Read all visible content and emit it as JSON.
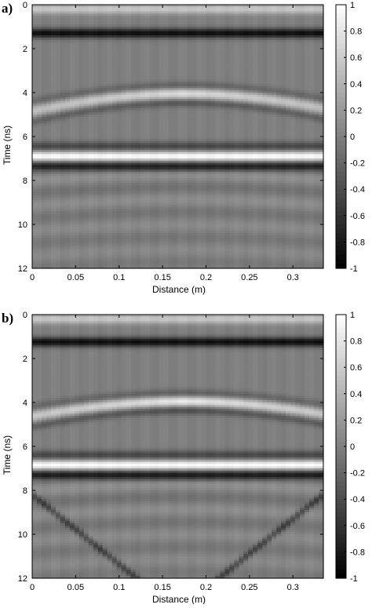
{
  "chart_data": [
    {
      "type": "heatmap",
      "panel_label": "a)",
      "xlabel": "Distance (m)",
      "ylabel": "Time (ns)",
      "xlim": [
        0,
        0.335
      ],
      "ylim": [
        12,
        0
      ],
      "xticks": [
        "0",
        "0.05",
        "0.1",
        "0.15",
        "0.2",
        "0.25",
        "0.3"
      ],
      "yticks": [
        "0",
        "2",
        "4",
        "6",
        "8",
        "10",
        "12"
      ],
      "colorbar": {
        "range": [
          -1,
          1
        ],
        "ticks": [
          "1",
          "0.8",
          "0.6",
          "0.4",
          "0.2",
          "0",
          "-0.2",
          "-0.4",
          "-0.6",
          "-0.8",
          "-1"
        ],
        "colormap": "gray"
      },
      "features": [
        {
          "kind": "horizontal-band",
          "time_ns": 0.2,
          "amplitude": 0.55
        },
        {
          "kind": "horizontal-band",
          "time_ns": 1.3,
          "amplitude": -0.9
        },
        {
          "kind": "horizontal-band",
          "time_ns": 6.45,
          "amplitude": -0.45
        },
        {
          "kind": "horizontal-band",
          "time_ns": 6.9,
          "amplitude": 1.0
        },
        {
          "kind": "horizontal-band",
          "time_ns": 7.35,
          "amplitude": -0.75
        },
        {
          "kind": "hyperbola",
          "apex_x_m": 0.175,
          "apex_t_ns": 4.05,
          "amplitude": 0.75,
          "spread": 7.5,
          "width_ns": 0.28
        },
        {
          "kind": "hyperbola",
          "apex_x_m": 0.175,
          "apex_t_ns": 3.7,
          "amplitude": -0.35,
          "spread": 7.5,
          "width_ns": 0.2
        },
        {
          "kind": "hyperbola",
          "apex_x_m": 0.175,
          "apex_t_ns": 4.45,
          "amplitude": -0.4,
          "spread": 7.5,
          "width_ns": 0.2
        }
      ]
    },
    {
      "type": "heatmap",
      "panel_label": "b)",
      "xlabel": "Distance (m)",
      "ylabel": "Time (ns)",
      "xlim": [
        0,
        0.335
      ],
      "ylim": [
        12,
        0
      ],
      "xticks": [
        "0",
        "0.05",
        "0.1",
        "0.15",
        "0.2",
        "0.25",
        "0.3"
      ],
      "yticks": [
        "0",
        "2",
        "4",
        "6",
        "8",
        "10",
        "12"
      ],
      "colorbar": {
        "range": [
          -1,
          1
        ],
        "ticks": [
          "1",
          "0.8",
          "0.6",
          "0.4",
          "0.2",
          "0",
          "-0.2",
          "-0.4",
          "-0.6",
          "-0.8",
          "-1"
        ],
        "colormap": "gray"
      },
      "features": [
        {
          "kind": "horizontal-band",
          "time_ns": 0.2,
          "amplitude": 0.55
        },
        {
          "kind": "horizontal-band",
          "time_ns": 1.25,
          "amplitude": -0.9
        },
        {
          "kind": "horizontal-band",
          "time_ns": 6.4,
          "amplitude": -0.45
        },
        {
          "kind": "horizontal-band",
          "time_ns": 6.85,
          "amplitude": 1.0
        },
        {
          "kind": "horizontal-band",
          "time_ns": 7.3,
          "amplitude": -0.8
        },
        {
          "kind": "hyperbola",
          "apex_x_m": 0.175,
          "apex_t_ns": 3.95,
          "amplitude": 0.85,
          "spread": 7.0,
          "width_ns": 0.26
        },
        {
          "kind": "hyperbola",
          "apex_x_m": 0.175,
          "apex_t_ns": 3.6,
          "amplitude": -0.35,
          "spread": 7.0,
          "width_ns": 0.2
        },
        {
          "kind": "hyperbola",
          "apex_x_m": 0.175,
          "apex_t_ns": 4.35,
          "amplitude": -0.45,
          "spread": 7.0,
          "width_ns": 0.2
        },
        {
          "kind": "diagonal",
          "x0_m": 0.0,
          "t0_ns": 8.2,
          "x1_m": 0.12,
          "t1_ns": 12.0,
          "amplitude": -0.45
        },
        {
          "kind": "diagonal",
          "x0_m": 0.335,
          "t0_ns": 8.2,
          "x1_m": 0.215,
          "t1_ns": 12.0,
          "amplitude": -0.45
        }
      ]
    }
  ]
}
